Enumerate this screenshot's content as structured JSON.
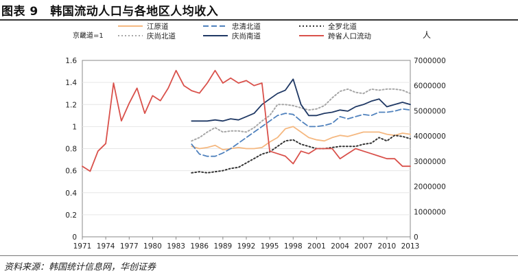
{
  "figure": {
    "title": "图表 9　韩国流动人口与各地区人均收入",
    "source": "资料来源：韩国统计信息网，华创证券"
  },
  "chart_data": {
    "type": "line",
    "title": "韩国流动人口与各地区人均收入",
    "ylabel_left": "京畿道=1",
    "ylabel_right": "人",
    "x_ticks": [
      1971,
      1974,
      1977,
      1980,
      1983,
      1986,
      1989,
      1992,
      1995,
      1998,
      2001,
      2004,
      2007,
      2010,
      2013
    ],
    "xlim": [
      1971,
      2013
    ],
    "y_left": {
      "range": [
        0,
        1.6
      ],
      "ticks": [
        "0",
        "0.2",
        "0.4",
        "0.6",
        "0.8",
        "1",
        "1.2",
        "1.4",
        "1.6"
      ]
    },
    "y_right": {
      "range": [
        0,
        7000000
      ],
      "ticks": [
        "0",
        "1000000",
        "2000000",
        "3000000",
        "4000000",
        "5000000",
        "6000000",
        "7000000"
      ]
    },
    "legend_position": "top",
    "series": [
      {
        "name": "江原道",
        "axis": "left",
        "color": "#f5b880",
        "dash": "solid",
        "x": [
          1985,
          1986,
          1987,
          1988,
          1989,
          1990,
          1991,
          1992,
          1993,
          1994,
          1995,
          1996,
          1997,
          1998,
          1999,
          2000,
          2001,
          2002,
          2003,
          2004,
          2005,
          2006,
          2007,
          2008,
          2009,
          2010,
          2011,
          2012,
          2013
        ],
        "values": [
          0.82,
          0.8,
          0.81,
          0.83,
          0.79,
          0.8,
          0.81,
          0.8,
          0.8,
          0.81,
          0.86,
          0.9,
          0.98,
          1.0,
          0.95,
          0.9,
          0.88,
          0.87,
          0.9,
          0.92,
          0.91,
          0.93,
          0.95,
          0.95,
          0.95,
          0.93,
          0.92,
          0.94,
          0.93
        ]
      },
      {
        "name": "忠清北道",
        "axis": "left",
        "color": "#4f81bd",
        "dash": "dashed",
        "x": [
          1985,
          1986,
          1987,
          1988,
          1989,
          1990,
          1991,
          1992,
          1993,
          1994,
          1995,
          1996,
          1997,
          1998,
          1999,
          2000,
          2001,
          2002,
          2003,
          2004,
          2005,
          2006,
          2007,
          2008,
          2009,
          2010,
          2011,
          2012,
          2013
        ],
        "values": [
          0.84,
          0.75,
          0.73,
          0.73,
          0.76,
          0.8,
          0.85,
          0.9,
          0.95,
          1.0,
          1.05,
          1.1,
          1.12,
          1.11,
          1.05,
          1.0,
          1.0,
          1.01,
          1.03,
          1.09,
          1.07,
          1.09,
          1.11,
          1.1,
          1.13,
          1.13,
          1.14,
          1.16,
          1.15
        ]
      },
      {
        "name": "全罗北道",
        "axis": "left",
        "color": "#333333",
        "dash": "dotted",
        "x": [
          1985,
          1986,
          1987,
          1988,
          1989,
          1990,
          1991,
          1992,
          1993,
          1994,
          1995,
          1996,
          1997,
          1998,
          1999,
          2000,
          2001,
          2002,
          2003,
          2004,
          2005,
          2006,
          2007,
          2008,
          2009,
          2010,
          2011,
          2012,
          2013
        ],
        "values": [
          0.58,
          0.59,
          0.58,
          0.59,
          0.6,
          0.62,
          0.63,
          0.67,
          0.71,
          0.75,
          0.77,
          0.82,
          0.87,
          0.88,
          0.84,
          0.82,
          0.8,
          0.8,
          0.81,
          0.82,
          0.82,
          0.82,
          0.84,
          0.85,
          0.9,
          0.87,
          0.92,
          0.91,
          0.89
        ]
      },
      {
        "name": "庆尚北道",
        "axis": "left",
        "color": "#a6a6a6",
        "dash": "dotted",
        "x": [
          1985,
          1986,
          1987,
          1988,
          1989,
          1990,
          1991,
          1992,
          1993,
          1994,
          1995,
          1996,
          1997,
          1998,
          1999,
          2000,
          2001,
          2002,
          2003,
          2004,
          2005,
          2006,
          2007,
          2008,
          2009,
          2010,
          2011,
          2012,
          2013
        ],
        "values": [
          0.87,
          0.9,
          0.95,
          0.99,
          0.95,
          0.96,
          0.96,
          0.95,
          0.99,
          1.05,
          1.1,
          1.2,
          1.2,
          1.19,
          1.17,
          1.15,
          1.16,
          1.19,
          1.26,
          1.32,
          1.34,
          1.31,
          1.3,
          1.34,
          1.33,
          1.34,
          1.34,
          1.33,
          1.3
        ]
      },
      {
        "name": "庆尚南道",
        "axis": "left",
        "color": "#1f3864",
        "dash": "solid",
        "x": [
          1985,
          1986,
          1987,
          1988,
          1989,
          1990,
          1991,
          1992,
          1993,
          1994,
          1995,
          1996,
          1997,
          1998,
          1999,
          2000,
          2001,
          2002,
          2003,
          2004,
          2005,
          2006,
          2007,
          2008,
          2009,
          2010,
          2011,
          2012,
          2013
        ],
        "values": [
          1.05,
          1.05,
          1.05,
          1.06,
          1.05,
          1.07,
          1.06,
          1.09,
          1.12,
          1.2,
          1.25,
          1.3,
          1.33,
          1.43,
          1.2,
          1.1,
          1.1,
          1.12,
          1.13,
          1.15,
          1.14,
          1.18,
          1.2,
          1.23,
          1.25,
          1.18,
          1.2,
          1.22,
          1.2
        ]
      },
      {
        "name": "跨省人口流动",
        "axis": "right",
        "color": "#d9504a",
        "dash": "solid",
        "x": [
          1971,
          1972,
          1973,
          1974,
          1975,
          1976,
          1977,
          1978,
          1979,
          1980,
          1981,
          1982,
          1983,
          1984,
          1985,
          1986,
          1987,
          1988,
          1989,
          1990,
          1991,
          1992,
          1993,
          1994,
          1995,
          1996,
          1997,
          1998,
          1999,
          2000,
          2001,
          2002,
          2003,
          2004,
          2005,
          2006,
          2007,
          2008,
          2009,
          2010,
          2011,
          2012,
          2013
        ],
        "values": [
          2800000,
          2600000,
          3400000,
          3700000,
          6100000,
          4600000,
          5300000,
          5900000,
          4900000,
          5600000,
          5400000,
          5900000,
          6600000,
          6000000,
          5800000,
          5700000,
          6100000,
          6600000,
          6100000,
          6300000,
          6100000,
          6200000,
          6000000,
          6100000,
          3400000,
          3300000,
          3200000,
          2900000,
          3400000,
          3300000,
          3500000,
          3500000,
          3500000,
          3100000,
          3300000,
          3500000,
          3400000,
          3300000,
          3200000,
          3100000,
          3100000,
          2800000,
          2800000
        ]
      }
    ]
  }
}
